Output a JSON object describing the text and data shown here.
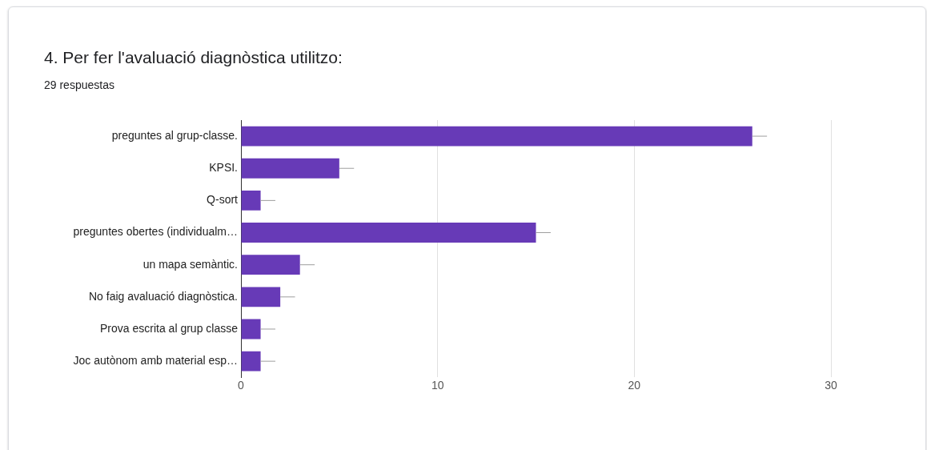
{
  "chart_data": {
    "type": "bar",
    "orientation": "horizontal",
    "title": "4. Per fer l'avaluació diagnòstica utilitzo:",
    "subtitle": "29 respuestas",
    "categories": [
      "preguntes al grup-classe.",
      "KPSI.",
      "Q-sort",
      "preguntes obertes (individualm…",
      "un mapa semàntic.",
      "No faig avaluació diagnòstica.",
      "Prova escrita al grup classe",
      "Joc autònom amb material esp…"
    ],
    "values": [
      26,
      5,
      1,
      15,
      3,
      2,
      1,
      1
    ],
    "errors": [
      [
        26,
        26.75
      ],
      [
        5,
        5.75
      ],
      [
        1,
        1.75
      ],
      [
        15,
        15.75
      ],
      [
        3,
        3.75
      ],
      [
        2,
        2.75
      ],
      [
        1,
        1.75
      ],
      [
        1,
        1.75
      ]
    ],
    "color": "#673ab7",
    "xlim": [
      0,
      30
    ],
    "xticks": [
      0,
      10,
      20,
      30
    ],
    "grid": "x"
  }
}
